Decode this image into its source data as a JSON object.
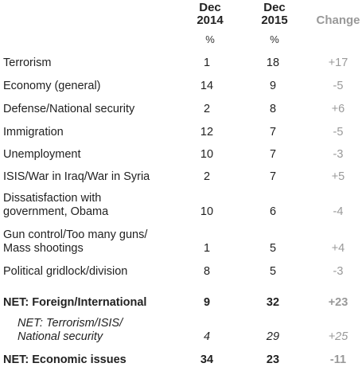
{
  "header": {
    "col1": {
      "line1": "Dec",
      "line2": "2014",
      "unit": "%"
    },
    "col2": {
      "line1": "Dec",
      "line2": "2015",
      "unit": "%"
    },
    "col3": {
      "label": "Change"
    }
  },
  "rows": [
    {
      "label": [
        "Terrorism"
      ],
      "dec2014": "1",
      "dec2015": "18",
      "change": "+17"
    },
    {
      "label": [
        "Economy (general)"
      ],
      "dec2014": "14",
      "dec2015": "9",
      "change": "-5"
    },
    {
      "label": [
        "Defense/National security"
      ],
      "dec2014": "2",
      "dec2015": "8",
      "change": "+6"
    },
    {
      "label": [
        "Immigration"
      ],
      "dec2014": "12",
      "dec2015": "7",
      "change": "-5"
    },
    {
      "label": [
        "Unemployment"
      ],
      "dec2014": "10",
      "dec2015": "7",
      "change": "-3"
    },
    {
      "label": [
        "ISIS/War in Iraq/War in Syria"
      ],
      "dec2014": "2",
      "dec2015": "7",
      "change": "+5"
    },
    {
      "label": [
        "Dissatisfaction with",
        "government, Obama"
      ],
      "dec2014": "10",
      "dec2015": "6",
      "change": "-4"
    },
    {
      "label": [
        "Gun control/Too many guns/",
        "Mass shootings"
      ],
      "dec2014": "1",
      "dec2015": "5",
      "change": "+4"
    },
    {
      "label": [
        "Political gridlock/division"
      ],
      "dec2014": "8",
      "dec2015": "5",
      "change": "-3"
    },
    {
      "label": [
        "NET: Foreign/International"
      ],
      "dec2014": "9",
      "dec2015": "32",
      "change": "+23"
    },
    {
      "label": [
        "NET: Terrorism/ISIS/",
        "National security"
      ],
      "dec2014": "4",
      "dec2015": "29",
      "change": "+25"
    },
    {
      "label": [
        "NET: Economic issues"
      ],
      "dec2014": "34",
      "dec2015": "23",
      "change": "-11"
    }
  ]
}
